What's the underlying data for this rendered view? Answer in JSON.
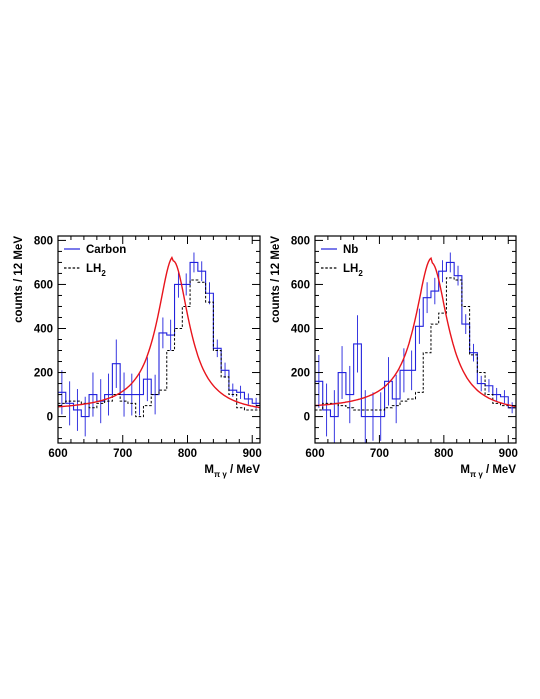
{
  "chart_data": [
    {
      "type": "line",
      "panel": "left",
      "ylabel": "counts / 12 MeV",
      "xlabel": "M",
      "xlabel_sub": "π γ",
      "xlabel_unit": " / MeV",
      "xlim": [
        600,
        912
      ],
      "ylim": [
        -120,
        820
      ],
      "xticks": [
        600,
        700,
        800,
        900
      ],
      "yticks": [
        0,
        200,
        400,
        600,
        800
      ],
      "legend_position": "top-left",
      "legend": [
        {
          "label": "Carbon",
          "sub": "",
          "style": "solid",
          "color": "#2222dd"
        },
        {
          "label": "LH",
          "sub": "2",
          "style": "dashed",
          "color": "#000000"
        }
      ],
      "bin_width": 12,
      "bin_start": 600,
      "series": [
        {
          "name": "Carbon",
          "kind": "hist",
          "color": "#2222dd",
          "values": [
            110,
            60,
            30,
            0,
            100,
            70,
            100,
            240,
            100,
            100,
            100,
            170,
            100,
            380,
            370,
            600,
            600,
            700,
            660,
            560,
            310,
            210,
            120,
            110,
            80,
            60,
            40,
            30,
            10,
            20,
            20,
            50
          ],
          "errors": [
            100,
            100,
            95,
            90,
            100,
            100,
            95,
            110,
            100,
            95,
            95,
            100,
            90,
            70,
            70,
            60,
            50,
            45,
            45,
            50,
            40,
            35,
            30,
            30,
            25,
            25,
            20,
            20,
            20,
            20,
            20,
            20
          ]
        },
        {
          "name": "LH",
          "kind": "hist",
          "color": "#000000",
          "values": [
            60,
            70,
            70,
            60,
            40,
            60,
            70,
            100,
            70,
            60,
            0,
            50,
            100,
            120,
            300,
            400,
            500,
            620,
            610,
            520,
            300,
            180,
            100,
            40,
            30,
            30,
            20,
            10,
            10,
            10,
            10,
            10
          ]
        },
        {
          "name": "",
          "kind": "curve",
          "color": "#e8141c",
          "amplitude": 700,
          "center": 778,
          "width": 30,
          "baseline": 25
        }
      ]
    },
    {
      "type": "line",
      "panel": "right",
      "ylabel": "counts / 12 MeV",
      "xlabel": "M",
      "xlabel_sub": "π γ",
      "xlabel_unit": " / MeV",
      "xlim": [
        600,
        912
      ],
      "ylim": [
        -120,
        820
      ],
      "xticks": [
        600,
        700,
        800,
        900
      ],
      "yticks": [
        0,
        200,
        400,
        600,
        800
      ],
      "legend_position": "top-left",
      "legend": [
        {
          "label": "Nb",
          "sub": "",
          "style": "solid",
          "color": "#2222dd"
        },
        {
          "label": "LH",
          "sub": "2",
          "style": "dashed",
          "color": "#000000"
        }
      ],
      "bin_width": 12,
      "bin_start": 600,
      "series": [
        {
          "name": "Nb",
          "kind": "hist",
          "color": "#2222dd",
          "values": [
            160,
            30,
            0,
            200,
            100,
            330,
            0,
            0,
            0,
            160,
            80,
            210,
            210,
            410,
            540,
            570,
            660,
            700,
            640,
            420,
            290,
            150,
            140,
            100,
            90,
            40,
            80,
            60,
            50,
            40,
            30,
            30
          ],
          "errors": [
            120,
            120,
            120,
            120,
            130,
            130,
            120,
            110,
            110,
            110,
            110,
            100,
            90,
            80,
            70,
            60,
            50,
            45,
            45,
            45,
            40,
            35,
            30,
            30,
            30,
            25,
            25,
            25,
            25,
            25,
            25,
            25
          ]
        },
        {
          "name": "LH",
          "kind": "hist",
          "color": "#000000",
          "values": [
            30,
            60,
            60,
            50,
            40,
            30,
            30,
            30,
            30,
            40,
            50,
            70,
            80,
            110,
            290,
            420,
            470,
            630,
            620,
            500,
            280,
            200,
            100,
            60,
            50,
            40,
            30,
            10,
            10,
            10,
            10,
            10
          ]
        },
        {
          "name": "",
          "kind": "curve",
          "color": "#e8141c",
          "amplitude": 690,
          "center": 781,
          "width": 31,
          "baseline": 30
        }
      ]
    }
  ]
}
